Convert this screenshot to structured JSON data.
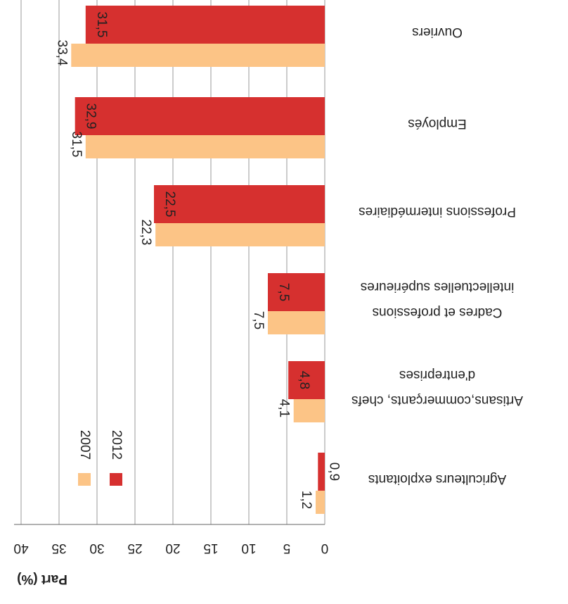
{
  "chart_data": {
    "type": "bar",
    "categories": [
      "Ouvriers",
      "Employés",
      "Professions intermédiaires",
      "Cadres  et professions intellectuelles supérieures",
      "Artisans,commerçants, chefs d'entreprises",
      "Agriculteurs exploitants"
    ],
    "series": [
      {
        "name": "2012",
        "color": "#d6302f",
        "values": [
          31.5,
          32.9,
          22.5,
          7.5,
          4.8,
          0.9
        ],
        "value_labels": [
          "31,5",
          "32,9",
          "22,5",
          "7,5",
          "4,8",
          "0,9"
        ]
      },
      {
        "name": "2007",
        "color": "#fcc486",
        "values": [
          33.4,
          31.5,
          22.3,
          7.5,
          4.1,
          1.2
        ],
        "value_labels": [
          "33,4",
          "31,5",
          "22,3",
          "7,5",
          "4,1",
          "1,2"
        ]
      }
    ],
    "y_label": "Part (%)",
    "ylim": [
      0,
      40
    ],
    "yticks": [
      0,
      5,
      10,
      15,
      20,
      25,
      30,
      35,
      40
    ],
    "grid": true
  }
}
